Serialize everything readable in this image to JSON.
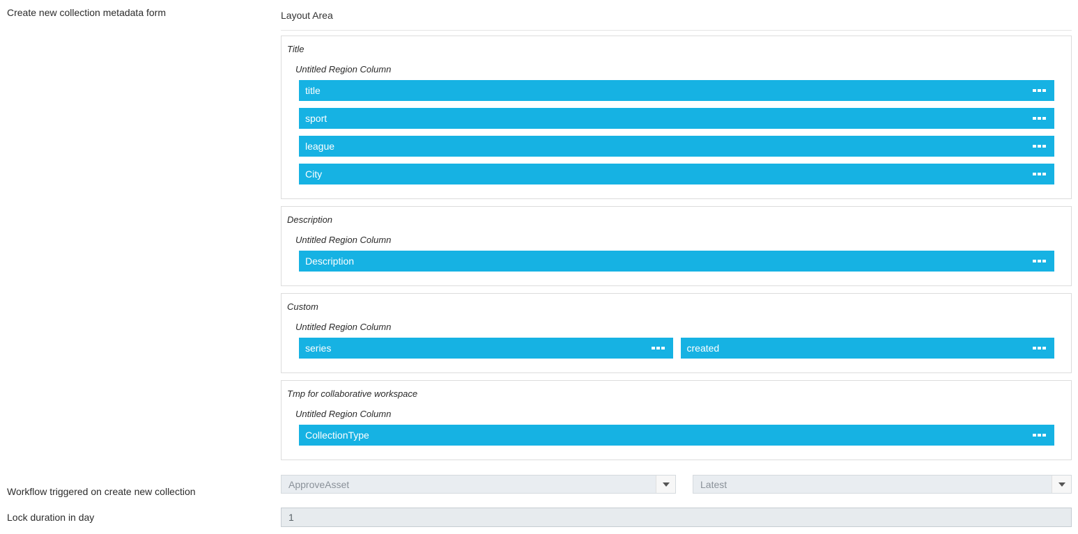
{
  "labels": {
    "form_title": "Create new collection metadata form",
    "workflow": "Workflow triggered on create new collection",
    "lock_duration": "Lock duration in day"
  },
  "layout_area": {
    "heading": "Layout Area",
    "sections": [
      {
        "title": "Title",
        "region_label": "Untitled Region Column",
        "fields": [
          "title",
          "sport",
          "league",
          "City"
        ]
      },
      {
        "title": "Description",
        "region_label": "Untitled Region Column",
        "fields": [
          "Description"
        ]
      },
      {
        "title": "Custom",
        "region_label": "Untitled Region Column",
        "fields": [
          "series",
          "created"
        ]
      },
      {
        "title": "Tmp for collaborative workspace",
        "region_label": "Untitled Region Column",
        "fields": [
          "CollectionType"
        ]
      }
    ]
  },
  "workflow": {
    "workflow_value": "ApproveAsset",
    "version_value": "Latest"
  },
  "lock": {
    "value": "1"
  },
  "colors": {
    "accent": "#16b2e3",
    "field_bg": "#e9edf1"
  }
}
